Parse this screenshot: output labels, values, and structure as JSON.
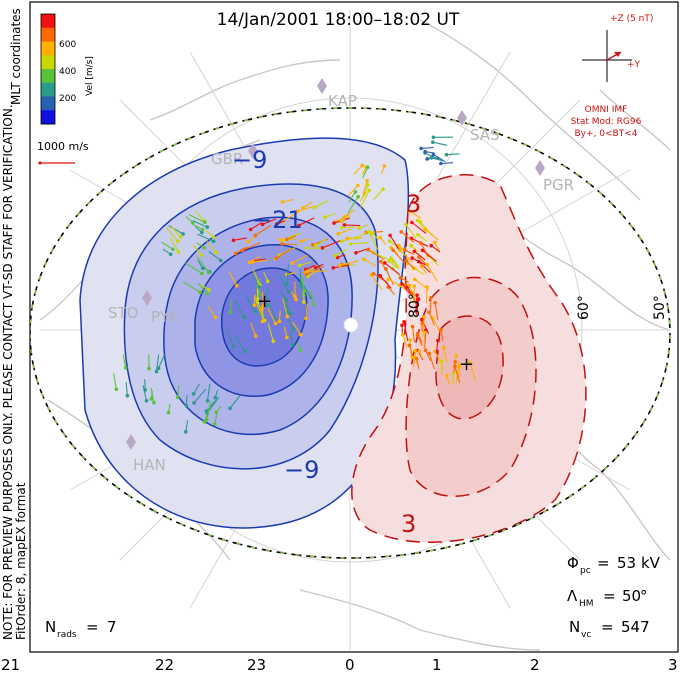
{
  "title": "14/Jan/2001  18:00–18:02  UT",
  "side_note": {
    "line1": "NOTE: FOR PREVIEW PURPOSES ONLY. PLEASE CONTACT VT-SD STAFF FOR VERIFICATION.",
    "line2": "FitOrder: 8,  mapEX format"
  },
  "coord_label": "MLT coordinates",
  "colorbar": {
    "label": "Vel [m/s]",
    "ticks": [
      "600",
      "400",
      "200"
    ],
    "colors": [
      "#f01010",
      "#ff6a00",
      "#ffb000",
      "#c8d800",
      "#59c23a",
      "#2a9a8a",
      "#2a5fb0",
      "#1010e0"
    ]
  },
  "vector_scale": {
    "label": "1000 m/s",
    "color": "#e01010"
  },
  "imf": {
    "z_label": "+Z (5 nT)",
    "y_label": "+Y",
    "source": "OMNI IMF",
    "model": "Stat Mod: RG96",
    "condition": "By+, 0<BT<4",
    "color": "#d01010"
  },
  "stations": [
    "KAP",
    "SAS",
    "GBR",
    "PGR",
    "STO",
    "PYK",
    "HAN"
  ],
  "contour_labels": {
    "neg_outer": "−9",
    "neg_inner": "−21",
    "neg_lower": "−9",
    "pos_upper": "3",
    "pos_lower": "3"
  },
  "lat_labels": {
    "inner": "80°",
    "mid": "60°",
    "outer": "50°"
  },
  "stats": {
    "phi_pc": {
      "value": "53",
      "unit": "kV"
    },
    "lambda_hm": {
      "value": "50",
      "unit": "°"
    },
    "n_vc": {
      "value": "547"
    },
    "n_rads": {
      "value": "7"
    }
  },
  "mlt_ticks": [
    "21",
    "22",
    "23",
    "0",
    "1",
    "2",
    "3"
  ]
}
